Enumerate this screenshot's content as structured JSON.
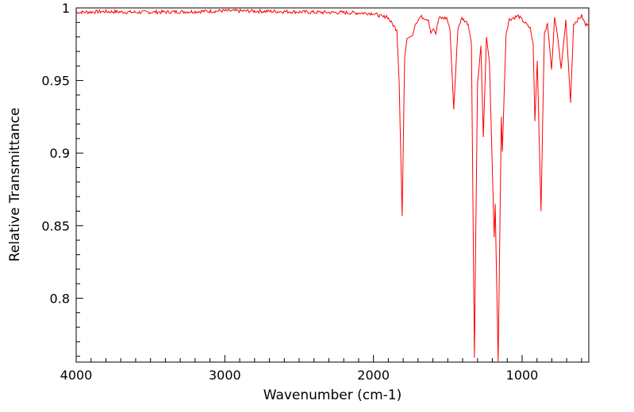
{
  "chart_data": {
    "type": "line",
    "title": "",
    "xlabel": "Wavenumber (cm-1)",
    "ylabel": "Relative Transmittance",
    "xlim": [
      4000,
      550
    ],
    "ylim": [
      0.756,
      1.0
    ],
    "x_reversed": true,
    "grid": false,
    "x_ticks": [
      4000,
      3000,
      2000,
      1000
    ],
    "x_tick_labels": [
      "4000",
      "3000",
      "2000",
      "1000"
    ],
    "y_ticks": [
      0.8,
      0.85,
      0.9,
      0.95,
      1
    ],
    "y_tick_labels": [
      "0.8",
      "0.85",
      "0.9",
      "0.95",
      "1"
    ],
    "series": [
      {
        "name": "spectrum",
        "color": "#ff0000",
        "points": [
          [
            4000,
            0.997
          ],
          [
            3800,
            0.9975
          ],
          [
            3600,
            0.997
          ],
          [
            3400,
            0.9972
          ],
          [
            3200,
            0.9975
          ],
          [
            3000,
            0.998
          ],
          [
            2800,
            0.9978
          ],
          [
            2600,
            0.9975
          ],
          [
            2400,
            0.997
          ],
          [
            2200,
            0.9968
          ],
          [
            2003,
            0.9963
          ],
          [
            1934,
            0.9936
          ],
          [
            1912,
            0.9945
          ],
          [
            1880,
            0.99
          ],
          [
            1843,
            0.9847
          ],
          [
            1827,
            0.948
          ],
          [
            1807,
            0.8566
          ],
          [
            1790,
            0.966
          ],
          [
            1774,
            0.979
          ],
          [
            1736,
            0.981
          ],
          [
            1720,
            0.989
          ],
          [
            1683,
            0.994
          ],
          [
            1630,
            0.992
          ],
          [
            1614,
            0.9826
          ],
          [
            1597,
            0.986
          ],
          [
            1581,
            0.982
          ],
          [
            1560,
            0.993
          ],
          [
            1507,
            0.993
          ],
          [
            1485,
            0.9847
          ],
          [
            1460,
            0.93
          ],
          [
            1432,
            0.986
          ],
          [
            1405,
            0.993
          ],
          [
            1363,
            0.989
          ],
          [
            1341,
            0.9755
          ],
          [
            1321,
            0.759
          ],
          [
            1300,
            0.948
          ],
          [
            1277,
            0.974
          ],
          [
            1261,
            0.911
          ],
          [
            1240,
            0.98
          ],
          [
            1220,
            0.963
          ],
          [
            1188,
            0.842
          ],
          [
            1181,
            0.865
          ],
          [
            1161,
            0.756
          ],
          [
            1140,
            0.925
          ],
          [
            1133,
            0.901
          ],
          [
            1108,
            0.982
          ],
          [
            1087,
            0.992
          ],
          [
            1026,
            0.9945
          ],
          [
            946,
            0.986
          ],
          [
            926,
            0.9755
          ],
          [
            914,
            0.922
          ],
          [
            898,
            0.9635
          ],
          [
            873,
            0.86
          ],
          [
            850,
            0.9826
          ],
          [
            829,
            0.989
          ],
          [
            802,
            0.9575
          ],
          [
            781,
            0.9935
          ],
          [
            759,
            0.979
          ],
          [
            738,
            0.958
          ],
          [
            706,
            0.992
          ],
          [
            674,
            0.9346
          ],
          [
            654,
            0.989
          ],
          [
            599,
            0.9945
          ],
          [
            573,
            0.988
          ],
          [
            550,
            0.99
          ]
        ]
      }
    ]
  }
}
